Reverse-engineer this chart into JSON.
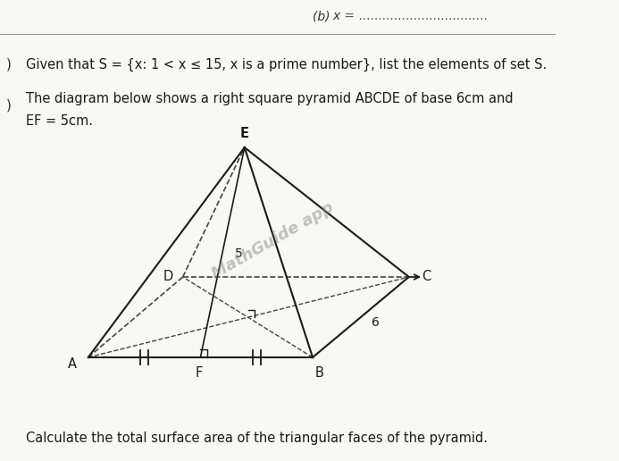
{
  "bg_color": "#f8f8f4",
  "line1": "Given that S = {x: 1 < x ≤ 15, x is a prime number}, list the elements of set S.",
  "line2": "The diagram below shows a right square pyramid ABCDE of base 6cm and",
  "line3": "EF = 5cm.",
  "bottom_text": "Calculate the total surface area of the triangular faces of the pyramid.",
  "watermark": "MathGuide app",
  "label_E": "E",
  "label_D": "D",
  "label_C": "C",
  "label_A": "A",
  "label_F": "F",
  "label_B": "B",
  "label_5": "5",
  "label_6": "6",
  "pyramid_color": "#1a1a1a",
  "dashed_color": "#444444",
  "header_text": "(b)  x = ",
  "header_dots": "..................................."
}
